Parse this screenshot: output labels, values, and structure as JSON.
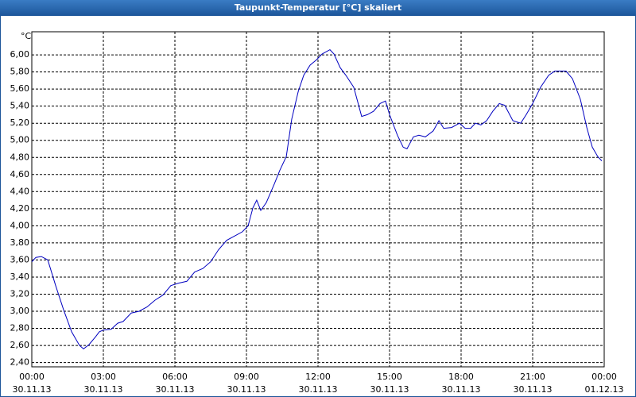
{
  "chart_data": {
    "type": "line",
    "title": "Taupunkt-Temperatur [°C] skaliert",
    "y_label": "°C",
    "x": [
      0,
      0.17,
      0.4,
      0.67,
      1,
      1.33,
      1.67,
      2,
      2.17,
      2.4,
      2.67,
      2.83,
      3,
      3.33,
      3.6,
      3.83,
      4.17,
      4.5,
      4.83,
      5.17,
      5.5,
      5.83,
      6.17,
      6.5,
      6.83,
      7.17,
      7.5,
      7.83,
      8.17,
      8.5,
      8.83,
      9.07,
      9.27,
      9.43,
      9.6,
      9.83,
      10.17,
      10.4,
      10.67,
      10.9,
      11.17,
      11.4,
      11.67,
      11.93,
      12.17,
      12.5,
      12.67,
      12.93,
      13.17,
      13.5,
      13.83,
      14.07,
      14.33,
      14.6,
      14.83,
      15,
      15.33,
      15.57,
      15.73,
      16,
      16.23,
      16.5,
      16.83,
      17.07,
      17.27,
      17.6,
      17.93,
      18.17,
      18.4,
      18.6,
      18.83,
      19.07,
      19.33,
      19.6,
      19.83,
      20.17,
      20.5,
      20.73,
      21,
      21.33,
      21.67,
      21.93,
      22.17,
      22.4,
      22.67,
      23,
      23.27,
      23.5,
      23.73,
      23.9
    ],
    "series": [
      {
        "color": "#0000c0",
        "values": [
          3.58,
          3.63,
          3.64,
          3.6,
          3.3,
          3.02,
          2.76,
          2.6,
          2.56,
          2.61,
          2.7,
          2.76,
          2.78,
          2.79,
          2.86,
          2.88,
          2.98,
          3,
          3.05,
          3.13,
          3.19,
          3.3,
          3.33,
          3.35,
          3.46,
          3.5,
          3.58,
          3.72,
          3.83,
          3.88,
          3.93,
          4,
          4.21,
          4.3,
          4.18,
          4.27,
          4.49,
          4.65,
          4.81,
          5.25,
          5.57,
          5.76,
          5.88,
          5.94,
          6.01,
          6.06,
          6.01,
          5.85,
          5.76,
          5.62,
          5.28,
          5.3,
          5.34,
          5.43,
          5.46,
          5.3,
          5.06,
          4.92,
          4.9,
          5.04,
          5.06,
          5.04,
          5.11,
          5.23,
          5.14,
          5.15,
          5.2,
          5.14,
          5.14,
          5.2,
          5.18,
          5.23,
          5.34,
          5.43,
          5.41,
          5.23,
          5.2,
          5.3,
          5.43,
          5.62,
          5.76,
          5.81,
          5.81,
          5.81,
          5.72,
          5.48,
          5.15,
          4.92,
          4.81,
          4.76
        ]
      }
    ],
    "xlim": [
      0,
      24
    ],
    "xticks": [
      {
        "value": 0,
        "label": "00:00"
      },
      {
        "value": 3,
        "label": "03:00"
      },
      {
        "value": 6,
        "label": "06:00"
      },
      {
        "value": 9,
        "label": "09:00"
      },
      {
        "value": 12,
        "label": "12:00"
      },
      {
        "value": 15,
        "label": "15:00"
      },
      {
        "value": 18,
        "label": "18:00"
      },
      {
        "value": 21,
        "label": "21:00"
      },
      {
        "value": 24,
        "label": "00:00"
      }
    ],
    "xtick_dates": [
      "30.11.13",
      "30.11.13",
      "30.11.13",
      "30.11.13",
      "30.11.13",
      "30.11.13",
      "30.11.13",
      "30.11.13",
      "01.12.13"
    ],
    "ylim": [
      2.35,
      6.27
    ],
    "yticks": [
      {
        "value": 2.4,
        "label": "2,40"
      },
      {
        "value": 2.6,
        "label": "2,60"
      },
      {
        "value": 2.8,
        "label": "2,80"
      },
      {
        "value": 3,
        "label": "3,00"
      },
      {
        "value": 3.2,
        "label": "3,20"
      },
      {
        "value": 3.4,
        "label": "3,40"
      },
      {
        "value": 3.6,
        "label": "3,60"
      },
      {
        "value": 3.8,
        "label": "3,80"
      },
      {
        "value": 4,
        "label": "4,00"
      },
      {
        "value": 4.2,
        "label": "4,20"
      },
      {
        "value": 4.4,
        "label": "4,40"
      },
      {
        "value": 4.6,
        "label": "4,60"
      },
      {
        "value": 4.8,
        "label": "4,80"
      },
      {
        "value": 5,
        "label": "5,00"
      },
      {
        "value": 5.2,
        "label": "5,20"
      },
      {
        "value": 5.4,
        "label": "5,40"
      },
      {
        "value": 5.6,
        "label": "5,60"
      },
      {
        "value": 5.8,
        "label": "5,80"
      },
      {
        "value": 6,
        "label": "6,00"
      }
    ],
    "grid": true
  }
}
